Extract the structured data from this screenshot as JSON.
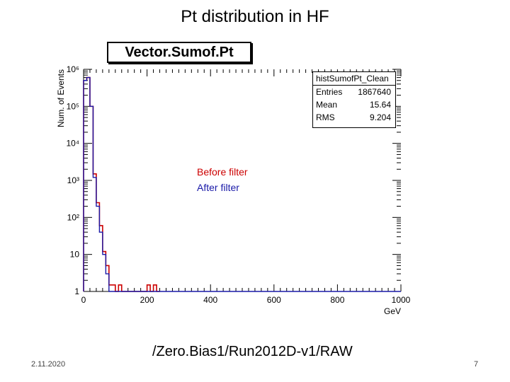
{
  "slide": {
    "title": "Pt distribution in HF",
    "date": "2.11.2020",
    "dataset": "/Zero.Bias1/Run2012D-v1/RAW",
    "page_number": "7"
  },
  "legend": {
    "before_label": "Before filter",
    "after_label": "After filter",
    "before_color": "#cc0000",
    "after_color": "#1a1aa8"
  },
  "chart_data": {
    "type": "histogram",
    "title": "Vector.Sumof.Pt",
    "xlabel": "GeV",
    "ylabel": "Num. of Events",
    "xlim": [
      0,
      1000
    ],
    "ylim": [
      1,
      1000000
    ],
    "y_scale": "log",
    "x_ticks": [
      0,
      200,
      400,
      600,
      800,
      1000
    ],
    "y_ticks": [
      {
        "value": 1,
        "label": "1"
      },
      {
        "value": 10,
        "label": "10"
      },
      {
        "value": 100,
        "label": "10²"
      },
      {
        "value": 1000,
        "label": "10³"
      },
      {
        "value": 10000,
        "label": "10⁴"
      },
      {
        "value": 100000,
        "label": "10⁵"
      },
      {
        "value": 1000000,
        "label": "10⁶"
      }
    ],
    "stats": {
      "name": "histSumofPt_Clean",
      "entries_label": "Entries",
      "entries": "1867640",
      "mean_label": "Mean",
      "mean": "15.64",
      "rms_label": "RMS",
      "rms": "9.204"
    },
    "series": [
      {
        "name": "Before filter",
        "color": "#cc0000",
        "bin_edges": [
          0,
          10,
          20,
          30,
          40,
          50,
          60,
          70,
          80,
          90,
          100,
          110,
          120,
          130,
          200,
          210,
          220,
          230,
          240
        ],
        "values": [
          500000,
          600000,
          100000,
          1500,
          250,
          60,
          12,
          5,
          1.5,
          1.5,
          1,
          1.5,
          1,
          1,
          1.5,
          1,
          1.5,
          1
        ]
      },
      {
        "name": "After filter",
        "color": "#1a1aa8",
        "bin_edges": [
          0,
          10,
          20,
          30,
          40,
          50,
          60,
          70,
          80,
          90,
          100,
          1000
        ],
        "values": [
          500000,
          600000,
          100000,
          1200,
          200,
          40,
          10,
          3,
          1,
          1,
          1
        ]
      }
    ]
  }
}
